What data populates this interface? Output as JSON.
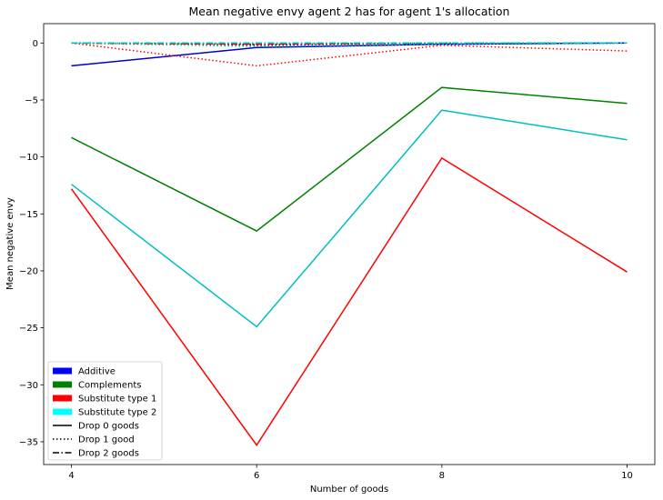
{
  "chart_data": {
    "type": "line",
    "title": "Mean negative envy agent 2 has for agent 1's allocation",
    "xlabel": "Number of goods",
    "ylabel": "Mean negative envy",
    "x": [
      4,
      6,
      8,
      10
    ],
    "xlim": [
      3.7,
      10.3
    ],
    "ylim": [
      -37,
      1.7
    ],
    "xticks": [
      4,
      6,
      8,
      10
    ],
    "yticks": [
      0,
      -5,
      -10,
      -15,
      -20,
      -25,
      -30,
      -35
    ],
    "ytick_labels": [
      "0",
      "−5",
      "−10",
      "−15",
      "−20",
      "−25",
      "−30",
      "−35"
    ],
    "grid": false,
    "legend_position": "lower-left",
    "colors": {
      "additive": "#0000cc",
      "complements": "#008000",
      "substitute1": "#ff0000",
      "substitute2": "#00bfbf"
    },
    "legend": [
      {
        "label": "Additive",
        "kind": "patch",
        "color": "#0000ff"
      },
      {
        "label": "Complements",
        "kind": "patch",
        "color": "#008000"
      },
      {
        "label": "Substitute type 1",
        "kind": "patch",
        "color": "#ff0000"
      },
      {
        "label": "Substitute type 2",
        "kind": "patch",
        "color": "#00ffff"
      },
      {
        "label": "Drop 0 goods",
        "kind": "line",
        "dash": "solid"
      },
      {
        "label": "Drop 1 good",
        "kind": "line",
        "dash": "dotted"
      },
      {
        "label": "Drop 2 goods",
        "kind": "line",
        "dash": "dashdot"
      }
    ],
    "series": [
      {
        "color": "#0000cc",
        "dash": "solid",
        "values": [
          -2.0,
          -0.4,
          -0.1,
          0.0
        ]
      },
      {
        "color": "#008000",
        "dash": "solid",
        "values": [
          -8.3,
          -16.5,
          -3.9,
          -5.3
        ]
      },
      {
        "color": "#ff0000",
        "dash": "solid",
        "values": [
          -12.8,
          -35.3,
          -10.1,
          -20.1
        ]
      },
      {
        "color": "#00bfbf",
        "dash": "solid",
        "values": [
          -12.4,
          -24.9,
          -5.9,
          -8.5
        ]
      },
      {
        "color": "#0000cc",
        "dash": "dotted",
        "values": [
          0.0,
          -0.2,
          -0.1,
          0.0
        ]
      },
      {
        "color": "#008000",
        "dash": "dotted",
        "values": [
          0.0,
          -0.1,
          0.0,
          0.0
        ]
      },
      {
        "color": "#ff0000",
        "dash": "dotted",
        "values": [
          0.0,
          -2.0,
          -0.2,
          -0.7
        ]
      },
      {
        "color": "#00bfbf",
        "dash": "dotted",
        "values": [
          0.0,
          -0.3,
          -0.1,
          0.0
        ]
      },
      {
        "color": "#0000cc",
        "dash": "dashdot",
        "values": [
          0.0,
          0.0,
          0.0,
          0.0
        ]
      },
      {
        "color": "#008000",
        "dash": "dashdot",
        "values": [
          0.0,
          -0.1,
          0.0,
          0.0
        ]
      },
      {
        "color": "#ff0000",
        "dash": "dashdot",
        "values": [
          0.0,
          -0.1,
          0.0,
          0.0
        ]
      },
      {
        "color": "#00bfbf",
        "dash": "dashdot",
        "values": [
          0.0,
          0.0,
          0.0,
          0.0
        ]
      }
    ]
  }
}
